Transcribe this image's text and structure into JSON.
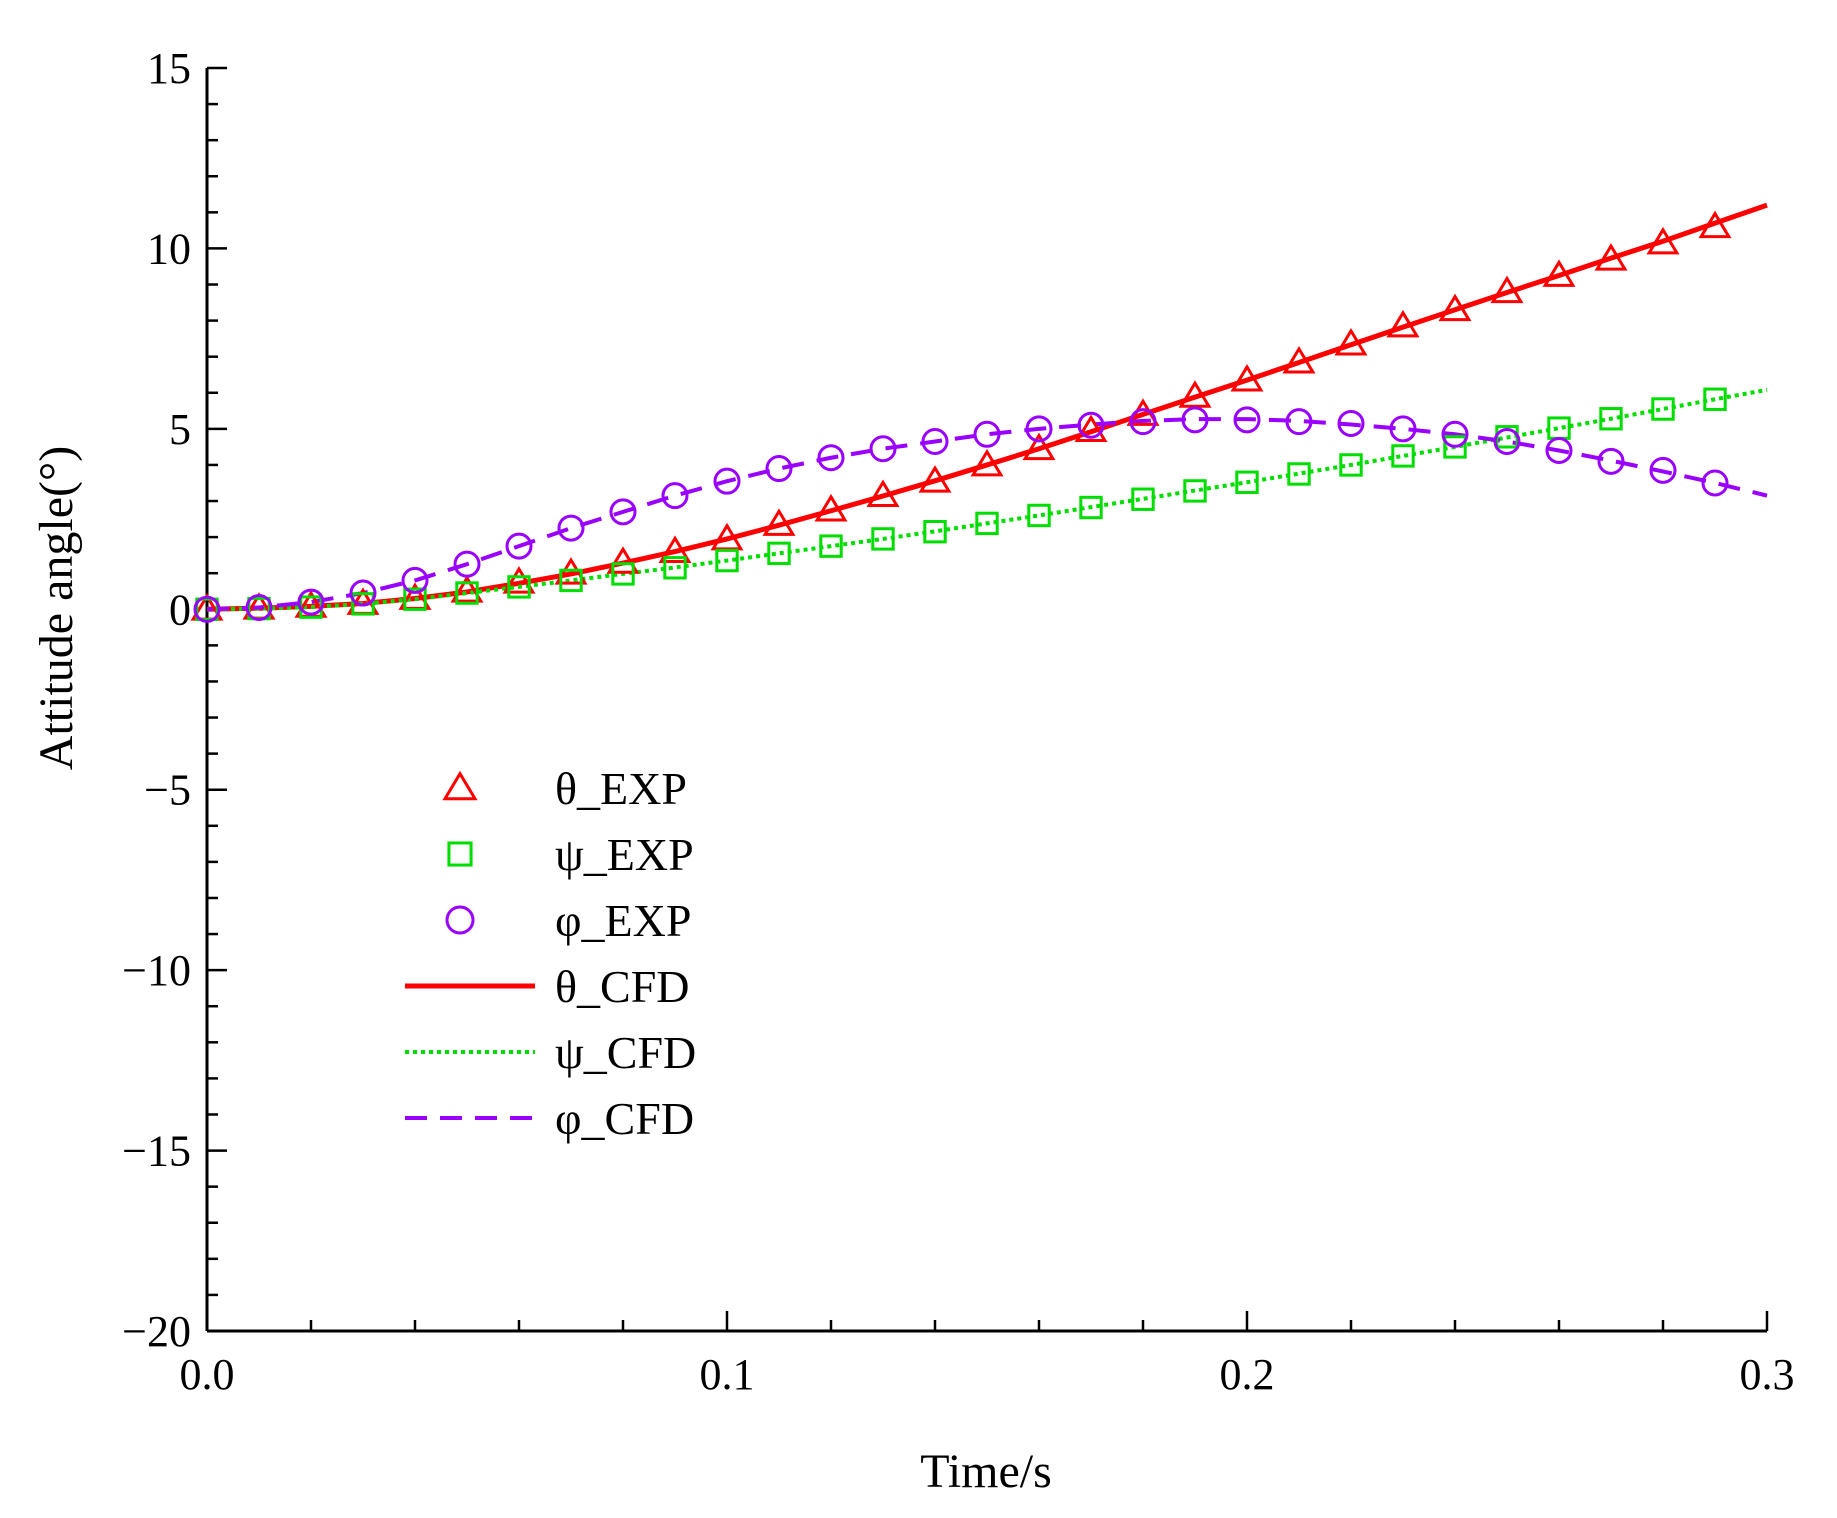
{
  "chart_data": {
    "type": "line",
    "title": "",
    "xlabel": "Time/s",
    "ylabel": "Attitude angle(°)",
    "xlim": [
      0,
      0.3
    ],
    "ylim": [
      -20,
      15
    ],
    "x_ticks": [
      {
        "value": 0.0,
        "label": "0.0"
      },
      {
        "value": 0.1,
        "label": "0.1"
      },
      {
        "value": 0.2,
        "label": "0.2"
      },
      {
        "value": 0.3,
        "label": "0.3"
      }
    ],
    "y_ticks": [
      {
        "value": 15,
        "label": "15"
      },
      {
        "value": 10,
        "label": "10"
      },
      {
        "value": 5,
        "label": "5"
      },
      {
        "value": 0,
        "label": "0"
      },
      {
        "value": -5,
        "label": "−5"
      },
      {
        "value": -10,
        "label": "−10"
      },
      {
        "value": -15,
        "label": "−15"
      },
      {
        "value": -20,
        "label": "−20"
      }
    ],
    "grid": false,
    "legend_position": "lower-left inside",
    "series": [
      {
        "name": "θ_EXP",
        "kind": "markers",
        "marker": "triangle",
        "color": "#ff0000",
        "x": [
          0,
          0.01,
          0.02,
          0.03,
          0.04,
          0.05,
          0.06,
          0.07,
          0.08,
          0.09,
          0.1,
          0.11,
          0.12,
          0.13,
          0.14,
          0.15,
          0.16,
          0.17,
          0.18,
          0.19,
          0.2,
          0.21,
          0.22,
          0.23,
          0.24,
          0.25,
          0.26,
          0.27,
          0.28,
          0.29
        ],
        "y": [
          0,
          0.03,
          0.08,
          0.16,
          0.3,
          0.5,
          0.75,
          1.0,
          1.3,
          1.6,
          1.95,
          2.35,
          2.75,
          3.15,
          3.55,
          4.0,
          4.45,
          4.95,
          5.4,
          5.9,
          6.35,
          6.85,
          7.35,
          7.85,
          8.3,
          8.8,
          9.25,
          9.7,
          10.15,
          10.6
        ]
      },
      {
        "name": "ψ_EXP",
        "kind": "markers",
        "marker": "square",
        "color": "#00dd00",
        "x": [
          0,
          0.01,
          0.02,
          0.03,
          0.04,
          0.05,
          0.06,
          0.07,
          0.08,
          0.09,
          0.1,
          0.11,
          0.12,
          0.13,
          0.14,
          0.15,
          0.16,
          0.17,
          0.18,
          0.19,
          0.2,
          0.21,
          0.22,
          0.23,
          0.24,
          0.25,
          0.26,
          0.27,
          0.28,
          0.29
        ],
        "y": [
          0,
          0.02,
          0.06,
          0.15,
          0.28,
          0.45,
          0.62,
          0.8,
          0.98,
          1.15,
          1.35,
          1.55,
          1.75,
          1.95,
          2.15,
          2.38,
          2.6,
          2.82,
          3.05,
          3.28,
          3.52,
          3.75,
          4.0,
          4.25,
          4.5,
          4.78,
          5.02,
          5.28,
          5.55,
          5.82
        ]
      },
      {
        "name": "φ_EXP",
        "kind": "markers",
        "marker": "circle",
        "color": "#9900ff",
        "x": [
          0,
          0.01,
          0.02,
          0.03,
          0.04,
          0.05,
          0.06,
          0.07,
          0.08,
          0.09,
          0.1,
          0.11,
          0.12,
          0.13,
          0.14,
          0.15,
          0.16,
          0.17,
          0.18,
          0.19,
          0.2,
          0.21,
          0.22,
          0.23,
          0.24,
          0.25,
          0.26,
          0.27,
          0.28,
          0.29
        ],
        "y": [
          0,
          0.05,
          0.2,
          0.45,
          0.8,
          1.25,
          1.75,
          2.25,
          2.7,
          3.15,
          3.55,
          3.9,
          4.2,
          4.45,
          4.65,
          4.85,
          5.0,
          5.1,
          5.2,
          5.25,
          5.25,
          5.2,
          5.15,
          5.0,
          4.85,
          4.65,
          4.4,
          4.1,
          3.85,
          3.5
        ]
      },
      {
        "name": "θ_CFD",
        "kind": "line",
        "dash": "solid",
        "color": "#ff0000",
        "x": [
          0,
          0.01,
          0.02,
          0.03,
          0.04,
          0.05,
          0.06,
          0.07,
          0.08,
          0.09,
          0.1,
          0.11,
          0.12,
          0.13,
          0.14,
          0.15,
          0.16,
          0.17,
          0.18,
          0.19,
          0.2,
          0.21,
          0.22,
          0.23,
          0.24,
          0.25,
          0.26,
          0.27,
          0.28,
          0.29,
          0.3
        ],
        "y": [
          0,
          0.03,
          0.08,
          0.16,
          0.3,
          0.48,
          0.72,
          0.98,
          1.28,
          1.6,
          1.95,
          2.33,
          2.73,
          3.14,
          3.56,
          4.0,
          4.45,
          4.92,
          5.4,
          5.88,
          6.35,
          6.84,
          7.33,
          7.82,
          8.3,
          8.78,
          9.25,
          9.73,
          10.2,
          10.7,
          11.2
        ]
      },
      {
        "name": "ψ_CFD",
        "kind": "line",
        "dash": "dotted",
        "color": "#00dd00",
        "x": [
          0,
          0.01,
          0.02,
          0.03,
          0.04,
          0.05,
          0.06,
          0.07,
          0.08,
          0.09,
          0.1,
          0.11,
          0.12,
          0.13,
          0.14,
          0.15,
          0.16,
          0.17,
          0.18,
          0.19,
          0.2,
          0.21,
          0.22,
          0.23,
          0.24,
          0.25,
          0.26,
          0.27,
          0.28,
          0.29,
          0.3
        ],
        "y": [
          0,
          0.02,
          0.06,
          0.15,
          0.28,
          0.45,
          0.62,
          0.8,
          0.98,
          1.16,
          1.35,
          1.55,
          1.75,
          1.95,
          2.16,
          2.38,
          2.6,
          2.83,
          3.06,
          3.29,
          3.52,
          3.76,
          4.0,
          4.25,
          4.5,
          4.76,
          5.02,
          5.28,
          5.55,
          5.82,
          6.08
        ]
      },
      {
        "name": "φ_CFD",
        "kind": "line",
        "dash": "dashed",
        "color": "#9900ff",
        "x": [
          0,
          0.01,
          0.02,
          0.03,
          0.04,
          0.05,
          0.06,
          0.07,
          0.08,
          0.09,
          0.1,
          0.11,
          0.12,
          0.13,
          0.14,
          0.15,
          0.16,
          0.17,
          0.18,
          0.19,
          0.2,
          0.21,
          0.22,
          0.23,
          0.24,
          0.25,
          0.26,
          0.27,
          0.28,
          0.29,
          0.3
        ],
        "y": [
          0,
          0.05,
          0.2,
          0.45,
          0.8,
          1.25,
          1.75,
          2.25,
          2.7,
          3.15,
          3.55,
          3.9,
          4.2,
          4.45,
          4.65,
          4.85,
          5.0,
          5.12,
          5.22,
          5.27,
          5.27,
          5.22,
          5.12,
          5.0,
          4.85,
          4.65,
          4.4,
          4.12,
          3.82,
          3.5,
          3.15
        ]
      }
    ]
  }
}
